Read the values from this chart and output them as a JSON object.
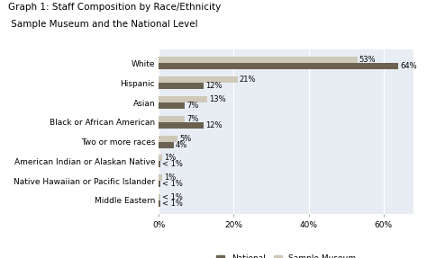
{
  "title_line1": "Graph 1: Staff Composition by Race/Ethnicity",
  "title_line2": " Sample Museum and the National Level",
  "categories": [
    "White",
    "Hispanic",
    "Asian",
    "Black or African American",
    "Two or more races",
    "American Indian or Alaskan Native",
    "Native Hawaiian or Pacific Islander",
    "Middle Eastern"
  ],
  "national": [
    64,
    12,
    7,
    12,
    4,
    0.4,
    0.4,
    0.4
  ],
  "sample_museum": [
    53,
    21,
    13,
    7,
    5,
    1,
    1,
    0.4
  ],
  "national_labels": [
    "64%",
    "12%",
    "7%",
    "12%",
    "4%",
    "< 1%",
    "< 1%",
    "< 1%"
  ],
  "sample_labels": [
    "53%",
    "21%",
    "13%",
    "7%",
    "5%",
    "1%",
    "1%",
    "< 1%"
  ],
  "national_color": "#6b6151",
  "sample_color": "#cec8b8",
  "background_color": "#e8edf4",
  "xlim": [
    0,
    68
  ],
  "xticks": [
    0,
    20,
    40,
    60
  ],
  "xticklabels": [
    "0%",
    "20%",
    "40%",
    "60%"
  ],
  "bar_height": 0.32,
  "legend_national": "National",
  "legend_sample": "Sample Museum",
  "title_fontsize": 7.5,
  "label_fontsize": 6.0,
  "tick_fontsize": 6.5,
  "legend_fontsize": 6.5
}
